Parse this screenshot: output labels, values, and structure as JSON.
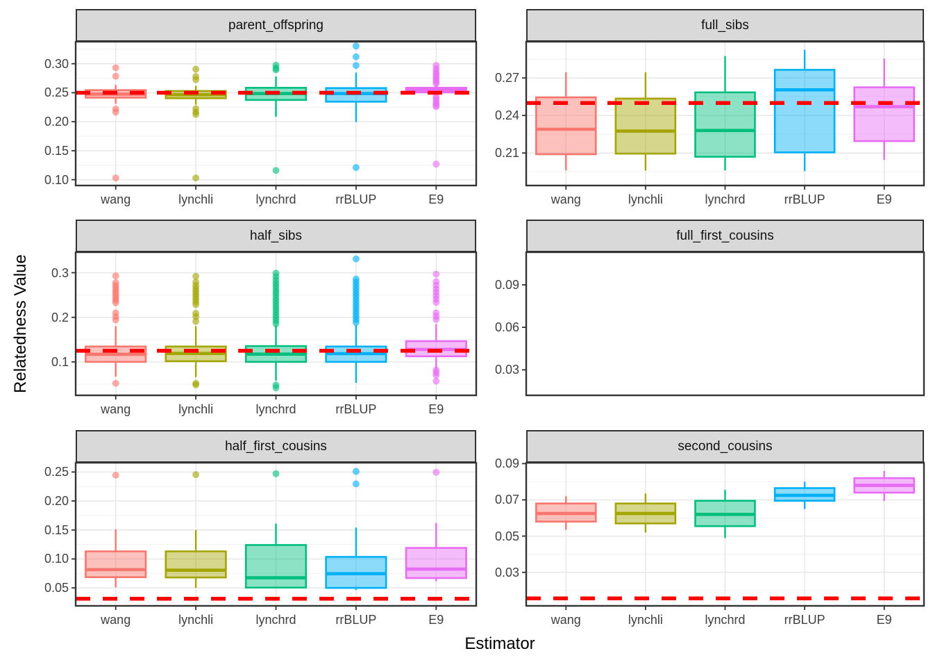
{
  "chart_data": {
    "type": "boxplot",
    "layout": "facet-grid-2col",
    "xlabel": "Estimator",
    "ylabel": "Relatedness Value",
    "categories": [
      "wang",
      "lynchli",
      "lynchrd",
      "rrBLUP",
      "E9"
    ],
    "palette": {
      "wang": "#F8766D",
      "lynchli": "#A3A500",
      "lynchrd": "#00BF7D",
      "rrBLUP": "#00B0F6",
      "E9": "#E76BF3"
    },
    "theme": {
      "strip_bg": "#D9D9D9",
      "panel_border": "#333333",
      "grid_major": "#E7E7E7",
      "grid_minor": "#F3F3F3",
      "tick_mark": "#333333",
      "tick_text": "#404040",
      "reference_line": "#FF0000",
      "reference_line_style": "dashed",
      "box_fill_opacity": 0.45,
      "outlier_opacity": 0.6
    },
    "panels": [
      {
        "title": "parent_offspring",
        "ylim": [
          0.09,
          0.338
        ],
        "yticks": [
          0.1,
          0.15,
          0.2,
          0.25,
          0.3
        ],
        "ytick_labels": [
          "0.10",
          "0.15",
          "0.20",
          "0.25",
          "0.30"
        ],
        "reference_value": 0.25,
        "show_grid": true,
        "show_x_axis": true,
        "boxes": [
          {
            "estimator": "wang",
            "whisker_low": 0.231,
            "q1": 0.2415,
            "median": 0.2475,
            "q3": 0.2545,
            "whisker_high": 0.2635,
            "outliers": [
              0.293,
              0.2785,
              0.222,
              0.2165,
              0.103
            ]
          },
          {
            "estimator": "lynchli",
            "whisker_low": 0.2295,
            "q1": 0.2405,
            "median": 0.2465,
            "q3": 0.253,
            "whisker_high": 0.262,
            "outliers": [
              0.2905,
              0.278,
              0.2725,
              0.2225,
              0.2165,
              0.2125,
              0.103
            ]
          },
          {
            "estimator": "lynchrd",
            "whisker_low": 0.2085,
            "q1": 0.2375,
            "median": 0.2485,
            "q3": 0.2585,
            "whisker_high": 0.278,
            "outliers": [
              0.2975,
              0.2925,
              0.2895,
              0.116
            ]
          },
          {
            "estimator": "rrBLUP",
            "whisker_low": 0.1995,
            "q1": 0.2345,
            "median": 0.2485,
            "q3": 0.258,
            "whisker_high": 0.2845,
            "outliers": [
              0.3305,
              0.312,
              0.297,
              0.121
            ]
          },
          {
            "estimator": "E9",
            "whisker_low": 0.2455,
            "q1": 0.2505,
            "median": 0.2545,
            "q3": 0.2585,
            "whisker_high": 0.2635,
            "outliers": [
              0.297,
              0.2915,
              0.287,
              0.283,
              0.279,
              0.2755,
              0.272,
              0.2685,
              0.2655,
              0.244,
              0.24,
              0.236,
              0.232,
              0.2285,
              0.226,
              0.127
            ]
          }
        ]
      },
      {
        "title": "full_sibs",
        "ylim": [
          0.184,
          0.299
        ],
        "yticks": [
          0.21,
          0.24,
          0.27
        ],
        "ytick_labels": [
          "0.21",
          "0.24",
          "0.27"
        ],
        "reference_value": 0.25,
        "show_grid": true,
        "show_x_axis": true,
        "boxes": [
          {
            "estimator": "wang",
            "whisker_low": 0.196,
            "q1": 0.209,
            "median": 0.229,
            "q3": 0.2545,
            "whisker_high": 0.2745,
            "outliers": []
          },
          {
            "estimator": "lynchli",
            "whisker_low": 0.196,
            "q1": 0.2095,
            "median": 0.2275,
            "q3": 0.2535,
            "whisker_high": 0.2745,
            "outliers": []
          },
          {
            "estimator": "lynchrd",
            "whisker_low": 0.196,
            "q1": 0.207,
            "median": 0.228,
            "q3": 0.2585,
            "whisker_high": 0.2875,
            "outliers": []
          },
          {
            "estimator": "rrBLUP",
            "whisker_low": 0.1955,
            "q1": 0.2105,
            "median": 0.2605,
            "q3": 0.2765,
            "whisker_high": 0.2925,
            "outliers": []
          },
          {
            "estimator": "E9",
            "whisker_low": 0.2045,
            "q1": 0.2195,
            "median": 0.247,
            "q3": 0.2625,
            "whisker_high": 0.2855,
            "outliers": []
          }
        ]
      },
      {
        "title": "half_sibs",
        "ylim": [
          0.025,
          0.346
        ],
        "yticks": [
          0.1,
          0.2,
          0.3
        ],
        "ytick_labels": [
          "0.1",
          "0.2",
          "0.3"
        ],
        "reference_value": 0.125,
        "show_grid": true,
        "show_x_axis": true,
        "boxes": [
          {
            "estimator": "wang",
            "whisker_low": 0.067,
            "q1": 0.1,
            "median": 0.117,
            "q3": 0.1345,
            "whisker_high": 0.18,
            "outliers": [
              0.293,
              0.278,
              0.2715,
              0.2655,
              0.26,
              0.2545,
              0.249,
              0.2435,
              0.238,
              0.2325,
              0.21,
              0.2015,
              0.194,
              0.052
            ]
          },
          {
            "estimator": "lynchli",
            "whisker_low": 0.066,
            "q1": 0.1015,
            "median": 0.119,
            "q3": 0.1345,
            "whisker_high": 0.18,
            "outliers": [
              0.292,
              0.279,
              0.271,
              0.2645,
              0.2585,
              0.2525,
              0.2465,
              0.2405,
              0.2345,
              0.2285,
              0.209,
              0.2015,
              0.191,
              0.052,
              0.0485
            ]
          },
          {
            "estimator": "lynchrd",
            "whisker_low": 0.058,
            "q1": 0.1,
            "median": 0.1175,
            "q3": 0.1355,
            "whisker_high": 0.182,
            "outliers": [
              0.299,
              0.291,
              0.2835,
              0.2765,
              0.27,
              0.2635,
              0.257,
              0.2505,
              0.244,
              0.2375,
              0.231,
              0.2245,
              0.218,
              0.2115,
              0.205,
              0.1985,
              0.192,
              0.1855,
              0.048,
              0.042
            ]
          },
          {
            "estimator": "rrBLUP",
            "whisker_low": 0.053,
            "q1": 0.1,
            "median": 0.1185,
            "q3": 0.1345,
            "whisker_high": 0.183,
            "outliers": [
              0.331,
              0.286,
              0.2795,
              0.273,
              0.2665,
              0.26,
              0.2535,
              0.247,
              0.2405,
              0.234,
              0.2275,
              0.221,
              0.2145,
              0.208,
              0.2015,
              0.195,
              0.1885
            ]
          },
          {
            "estimator": "E9",
            "whisker_low": 0.083,
            "q1": 0.1125,
            "median": 0.128,
            "q3": 0.1465,
            "whisker_high": 0.185,
            "outliers": [
              0.297,
              0.28,
              0.2715,
              0.2635,
              0.256,
              0.2485,
              0.241,
              0.2335,
              0.21,
              0.2025,
              0.195,
              0.082,
              0.076,
              0.07,
              0.057
            ]
          }
        ]
      },
      {
        "title": "full_first_cousins",
        "ylim": [
          0.012,
          0.113
        ],
        "yticks": [
          0.03,
          0.06,
          0.09
        ],
        "ytick_labels": [
          "0.03",
          "0.06",
          "0.09"
        ],
        "reference_value": null,
        "show_grid": false,
        "show_x_axis": false,
        "boxes": []
      },
      {
        "title": "half_first_cousins",
        "ylim": [
          0.019,
          0.266
        ],
        "yticks": [
          0.05,
          0.1,
          0.15,
          0.2,
          0.25
        ],
        "ytick_labels": [
          "0.05",
          "0.10",
          "0.15",
          "0.20",
          "0.25"
        ],
        "reference_value": 0.03125,
        "show_grid": true,
        "show_x_axis": true,
        "boxes": [
          {
            "estimator": "wang",
            "whisker_low": 0.051,
            "q1": 0.0685,
            "median": 0.0815,
            "q3": 0.113,
            "whisker_high": 0.151,
            "outliers": [
              0.2445
            ]
          },
          {
            "estimator": "lynchli",
            "whisker_low": 0.05,
            "q1": 0.068,
            "median": 0.0805,
            "q3": 0.113,
            "whisker_high": 0.15,
            "outliers": [
              0.2455
            ]
          },
          {
            "estimator": "lynchrd",
            "whisker_low": 0.049,
            "q1": 0.0505,
            "median": 0.0675,
            "q3": 0.124,
            "whisker_high": 0.161,
            "outliers": [
              0.247
            ]
          },
          {
            "estimator": "rrBLUP",
            "whisker_low": 0.0465,
            "q1": 0.05,
            "median": 0.0745,
            "q3": 0.1035,
            "whisker_high": 0.154,
            "outliers": [
              0.251,
              0.2295
            ]
          },
          {
            "estimator": "E9",
            "whisker_low": 0.0615,
            "q1": 0.067,
            "median": 0.0825,
            "q3": 0.119,
            "whisker_high": 0.162,
            "outliers": [
              0.2495
            ]
          }
        ]
      },
      {
        "title": "second_cousins",
        "ylim": [
          0.0115,
          0.0905
        ],
        "yticks": [
          0.03,
          0.05,
          0.07,
          0.09
        ],
        "ytick_labels": [
          "0.03",
          "0.05",
          "0.07",
          "0.09"
        ],
        "reference_value": 0.015625,
        "show_grid": true,
        "show_x_axis": true,
        "boxes": [
          {
            "estimator": "wang",
            "whisker_low": 0.0535,
            "q1": 0.058,
            "median": 0.0625,
            "q3": 0.068,
            "whisker_high": 0.072,
            "outliers": []
          },
          {
            "estimator": "lynchli",
            "whisker_low": 0.052,
            "q1": 0.057,
            "median": 0.0625,
            "q3": 0.068,
            "whisker_high": 0.0735,
            "outliers": []
          },
          {
            "estimator": "lynchrd",
            "whisker_low": 0.049,
            "q1": 0.0555,
            "median": 0.062,
            "q3": 0.0695,
            "whisker_high": 0.0755,
            "outliers": []
          },
          {
            "estimator": "rrBLUP",
            "whisker_low": 0.065,
            "q1": 0.0695,
            "median": 0.0725,
            "q3": 0.0765,
            "whisker_high": 0.08,
            "outliers": []
          },
          {
            "estimator": "E9",
            "whisker_low": 0.0695,
            "q1": 0.074,
            "median": 0.078,
            "q3": 0.082,
            "whisker_high": 0.086,
            "outliers": []
          }
        ]
      }
    ]
  }
}
